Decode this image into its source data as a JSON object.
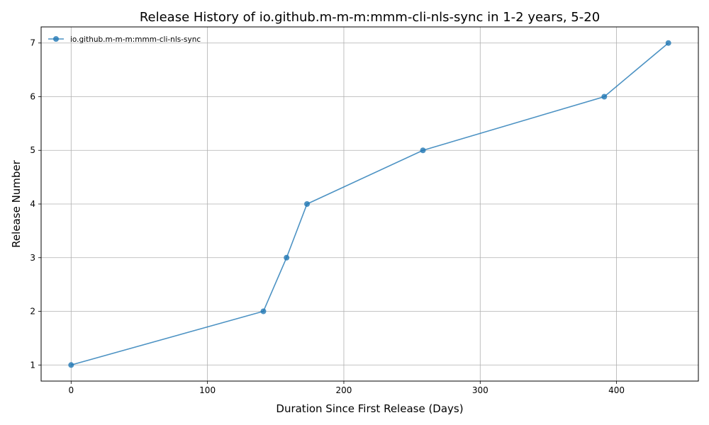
{
  "chart_data": {
    "type": "line",
    "title": "Release History of io.github.m-m-m:mmm-cli-nls-sync in 1-2 years, 5-20",
    "xlabel": "Duration Since First Release (Days)",
    "ylabel": "Release Number",
    "xlim": [
      -22,
      460
    ],
    "ylim": [
      0.7,
      7.3
    ],
    "x_ticks": [
      0,
      100,
      200,
      300,
      400
    ],
    "y_ticks": [
      1,
      2,
      3,
      4,
      5,
      6,
      7
    ],
    "grid": true,
    "legend_position": "top-left",
    "series": [
      {
        "name": "io.github.m-m-m:mmm-cli-nls-sync",
        "color": "#1f77b4",
        "x": [
          0,
          141,
          158,
          173,
          258,
          391,
          438
        ],
        "y": [
          1,
          2,
          3,
          4,
          5,
          6,
          7
        ]
      }
    ]
  }
}
